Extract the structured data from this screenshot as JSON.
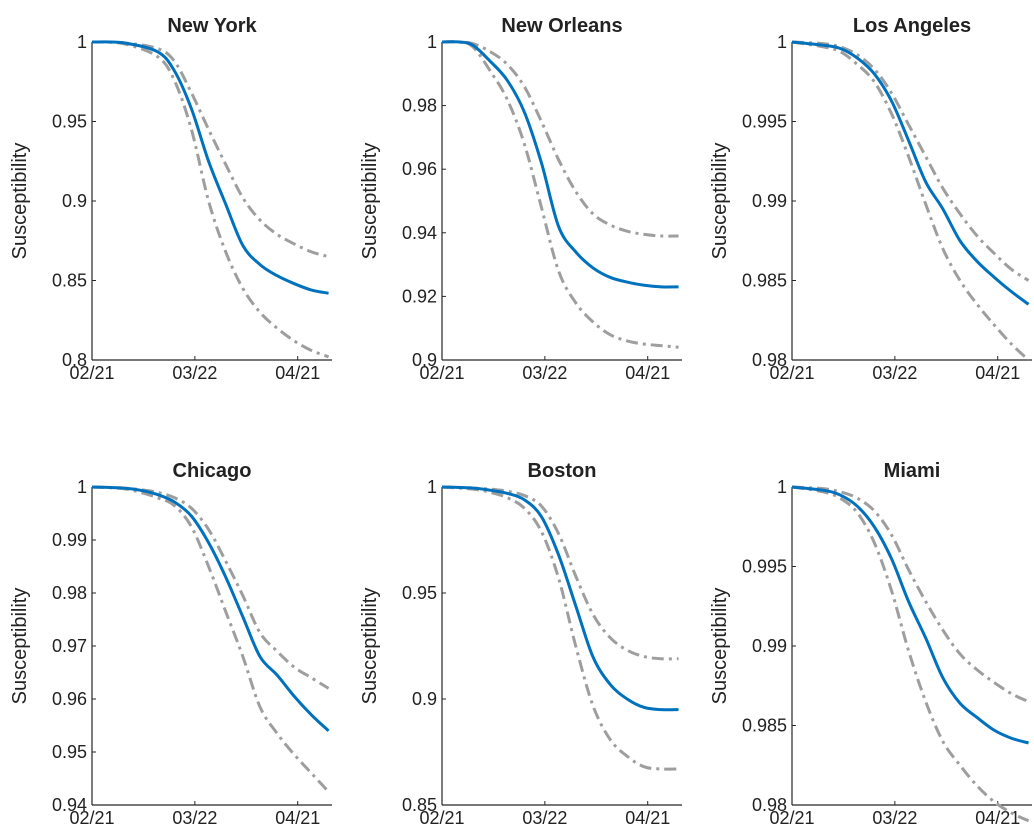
{
  "figure": {
    "ylabel": "Susceptibility"
  },
  "style": {
    "median_color": "#0072BD",
    "band_color": "#9e9e9e",
    "axis_color": "#262626"
  },
  "chart_data": [
    {
      "type": "line",
      "title": "New York",
      "x_ticks": [
        "02/21",
        "03/22",
        "04/21"
      ],
      "ylim": [
        0.8,
        1.0
      ],
      "y_ticks": [
        "0.8",
        "0.85",
        "0.9",
        "0.95",
        "1"
      ],
      "xlabel": "",
      "ylabel": "Susceptibility",
      "grid": false,
      "x": [
        "02/21",
        "03/01",
        "03/11",
        "03/16",
        "03/21",
        "03/26",
        "03/31",
        "04/05",
        "04/10",
        "04/15",
        "04/20",
        "04/25",
        "04/30"
      ],
      "series": [
        {
          "role": "upper",
          "style": "dash-dot",
          "values": [
            1.0,
            0.9995,
            0.996,
            0.988,
            0.968,
            0.945,
            0.923,
            0.902,
            0.888,
            0.879,
            0.873,
            0.868,
            0.865
          ]
        },
        {
          "role": "median",
          "style": "solid",
          "values": [
            1.0,
            0.9995,
            0.994,
            0.982,
            0.958,
            0.925,
            0.898,
            0.872,
            0.86,
            0.853,
            0.848,
            0.844,
            0.842
          ]
        },
        {
          "role": "lower",
          "style": "dash-dot",
          "values": [
            1.0,
            0.999,
            0.991,
            0.976,
            0.945,
            0.9,
            0.868,
            0.845,
            0.83,
            0.82,
            0.812,
            0.806,
            0.802
          ]
        }
      ]
    },
    {
      "type": "line",
      "title": "New Orleans",
      "x_ticks": [
        "02/21",
        "03/22",
        "04/21"
      ],
      "ylim": [
        0.9,
        1.0
      ],
      "y_ticks": [
        "0.9",
        "0.92",
        "0.94",
        "0.96",
        "0.98",
        "1"
      ],
      "xlabel": "",
      "ylabel": "Susceptibility",
      "grid": false,
      "x": [
        "02/21",
        "02/26",
        "03/01",
        "03/06",
        "03/11",
        "03/16",
        "03/21",
        "03/26",
        "03/31",
        "04/05",
        "04/10",
        "04/15",
        "04/20",
        "04/25",
        "04/30"
      ],
      "series": [
        {
          "role": "upper",
          "style": "dash-dot",
          "values": [
            1.0,
            1.0,
            0.9995,
            0.997,
            0.993,
            0.986,
            0.975,
            0.963,
            0.953,
            0.946,
            0.9425,
            0.9405,
            0.9395,
            0.939,
            0.939
          ]
        },
        {
          "role": "median",
          "style": "solid",
          "values": [
            1.0,
            1.0,
            0.999,
            0.994,
            0.988,
            0.978,
            0.962,
            0.942,
            0.934,
            0.929,
            0.926,
            0.9245,
            0.9235,
            0.923,
            0.923
          ]
        },
        {
          "role": "lower",
          "style": "dash-dot",
          "values": [
            1.0,
            1.0,
            0.9985,
            0.991,
            0.982,
            0.968,
            0.948,
            0.928,
            0.918,
            0.912,
            0.908,
            0.906,
            0.905,
            0.9045,
            0.904
          ]
        }
      ]
    },
    {
      "type": "line",
      "title": "Los Angeles",
      "x_ticks": [
        "02/21",
        "03/22",
        "04/21"
      ],
      "ylim": [
        0.98,
        1.0
      ],
      "y_ticks": [
        "0.98",
        "0.985",
        "0.99",
        "0.995",
        "1"
      ],
      "xlabel": "",
      "ylabel": "Susceptibility",
      "grid": false,
      "x": [
        "02/21",
        "03/01",
        "03/06",
        "03/11",
        "03/16",
        "03/21",
        "03/26",
        "03/31",
        "04/05",
        "04/10",
        "04/15",
        "04/20",
        "04/25",
        "04/30"
      ],
      "series": [
        {
          "role": "upper",
          "style": "dash-dot",
          "values": [
            1.0,
            0.9999,
            0.9997,
            0.9992,
            0.9983,
            0.9968,
            0.9948,
            0.9928,
            0.9908,
            0.9892,
            0.9878,
            0.9867,
            0.9857,
            0.985
          ]
        },
        {
          "role": "median",
          "style": "solid",
          "values": [
            1.0,
            0.9998,
            0.9996,
            0.999,
            0.998,
            0.9963,
            0.9938,
            0.9912,
            0.9895,
            0.9875,
            0.9862,
            0.9852,
            0.9843,
            0.9835
          ]
        },
        {
          "role": "lower",
          "style": "dash-dot",
          "values": [
            1.0,
            0.9997,
            0.9994,
            0.9986,
            0.9975,
            0.9955,
            0.9928,
            0.9898,
            0.987,
            0.985,
            0.9835,
            0.9822,
            0.981,
            0.98
          ]
        }
      ]
    },
    {
      "type": "line",
      "title": "Chicago",
      "x_ticks": [
        "02/21",
        "03/22",
        "04/21"
      ],
      "ylim": [
        0.94,
        1.0
      ],
      "y_ticks": [
        "0.94",
        "0.95",
        "0.96",
        "0.97",
        "0.98",
        "0.99",
        "1"
      ],
      "xlabel": "",
      "ylabel": "Susceptibility",
      "grid": false,
      "x": [
        "02/21",
        "03/01",
        "03/06",
        "03/11",
        "03/16",
        "03/21",
        "03/26",
        "03/31",
        "04/05",
        "04/10",
        "04/15",
        "04/20",
        "04/25",
        "04/30"
      ],
      "series": [
        {
          "role": "upper",
          "style": "dash-dot",
          "values": [
            1.0,
            0.9998,
            0.9995,
            0.999,
            0.998,
            0.996,
            0.992,
            0.986,
            0.9795,
            0.9725,
            0.969,
            0.966,
            0.964,
            0.962
          ]
        },
        {
          "role": "median",
          "style": "solid",
          "values": [
            1.0,
            0.9998,
            0.9994,
            0.9986,
            0.9972,
            0.9945,
            0.9895,
            0.983,
            0.9755,
            0.968,
            0.9645,
            0.9605,
            0.957,
            0.954
          ]
        },
        {
          "role": "lower",
          "style": "dash-dot",
          "values": [
            1.0,
            0.9997,
            0.999,
            0.998,
            0.9965,
            0.9925,
            0.985,
            0.9765,
            0.968,
            0.9585,
            0.9535,
            0.9495,
            0.946,
            0.9425
          ]
        }
      ]
    },
    {
      "type": "line",
      "title": "Boston",
      "x_ticks": [
        "02/21",
        "03/22",
        "04/21"
      ],
      "ylim": [
        0.85,
        1.0
      ],
      "y_ticks": [
        "0.85",
        "0.9",
        "0.95",
        "1"
      ],
      "xlabel": "",
      "ylabel": "Susceptibility",
      "grid": false,
      "x": [
        "02/21",
        "03/01",
        "03/06",
        "03/11",
        "03/16",
        "03/21",
        "03/26",
        "03/31",
        "04/05",
        "04/10",
        "04/15",
        "04/20",
        "04/25",
        "04/30"
      ],
      "series": [
        {
          "role": "upper",
          "style": "dash-dot",
          "values": [
            1.0,
            0.9995,
            0.999,
            0.998,
            0.996,
            0.991,
            0.978,
            0.958,
            0.94,
            0.929,
            0.923,
            0.92,
            0.919,
            0.919
          ]
        },
        {
          "role": "median",
          "style": "solid",
          "values": [
            1.0,
            0.9995,
            0.9985,
            0.997,
            0.994,
            0.986,
            0.968,
            0.944,
            0.92,
            0.907,
            0.9,
            0.896,
            0.895,
            0.895
          ]
        },
        {
          "role": "lower",
          "style": "dash-dot",
          "values": [
            1.0,
            0.999,
            0.9975,
            0.995,
            0.99,
            0.979,
            0.957,
            0.925,
            0.897,
            0.881,
            0.873,
            0.868,
            0.867,
            0.867
          ]
        }
      ]
    },
    {
      "type": "line",
      "title": "Miami",
      "x_ticks": [
        "02/21",
        "03/22",
        "04/21"
      ],
      "ylim": [
        0.98,
        1.0
      ],
      "y_ticks": [
        "0.98",
        "0.985",
        "0.99",
        "0.995",
        "1"
      ],
      "xlabel": "",
      "ylabel": "Susceptibility",
      "grid": false,
      "x": [
        "02/21",
        "03/01",
        "03/06",
        "03/11",
        "03/16",
        "03/21",
        "03/26",
        "03/31",
        "04/05",
        "04/10",
        "04/15",
        "04/20",
        "04/25",
        "04/30"
      ],
      "series": [
        {
          "role": "upper",
          "style": "dash-dot",
          "values": [
            1.0,
            0.9999,
            0.9997,
            0.9993,
            0.9985,
            0.997,
            0.9948,
            0.9928,
            0.991,
            0.9895,
            0.9885,
            0.9877,
            0.987,
            0.9865
          ]
        },
        {
          "role": "median",
          "style": "solid",
          "values": [
            1.0,
            0.9998,
            0.9995,
            0.9988,
            0.9975,
            0.9955,
            0.9928,
            0.9905,
            0.988,
            0.9864,
            0.9855,
            0.9847,
            0.9842,
            0.9839
          ]
        },
        {
          "role": "lower",
          "style": "dash-dot",
          "values": [
            1.0,
            0.9997,
            0.9993,
            0.9984,
            0.9965,
            0.9935,
            0.9897,
            0.9865,
            0.984,
            0.9825,
            0.9812,
            0.9802,
            0.9795,
            0.979
          ]
        }
      ]
    }
  ]
}
